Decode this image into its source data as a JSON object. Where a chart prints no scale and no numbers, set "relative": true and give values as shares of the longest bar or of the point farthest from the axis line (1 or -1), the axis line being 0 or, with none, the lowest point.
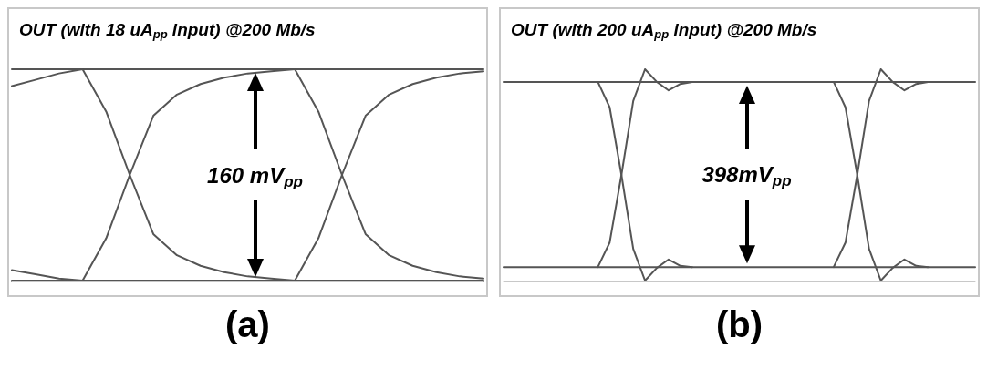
{
  "chart_data": [
    {
      "type": "line",
      "title": "OUT (with 18 uA$_{pp}$ input) @200 Mb/s",
      "relative": true,
      "categories": [
        null,
        null,
        null,
        null,
        null,
        null,
        null,
        null,
        null,
        null,
        null,
        null,
        null,
        null,
        null,
        null,
        null,
        null,
        null,
        null,
        null
      ],
      "annotations": [
        "160 mV$_{pp}$",
        "(a)"
      ],
      "marker": "none",
      "series": [
        {
          "color": "#555555",
          "values": [
            1,
            1,
            1,
            1,
            1,
            1,
            1,
            1,
            1,
            1,
            1,
            1,
            1,
            1,
            1,
            1,
            1,
            1,
            1,
            1,
            1
          ]
        },
        {
          "color": "#555555",
          "values": [
            0,
            0,
            0,
            0,
            0,
            0,
            0,
            0,
            0,
            0,
            0,
            0,
            0,
            0,
            0,
            0,
            0,
            0,
            0,
            0,
            0
          ]
        },
        {
          "color": "#555555",
          "values": [
            0.92,
            0.95,
            0.98,
            1,
            null,
            null,
            null,
            null,
            null,
            null,
            null,
            null,
            null,
            null,
            null,
            null,
            null,
            null,
            null,
            null,
            null
          ]
        },
        {
          "color": "#555555",
          "values": [
            0.05,
            0.03,
            0.01,
            0,
            null,
            null,
            null,
            null,
            null,
            null,
            null,
            null,
            null,
            null,
            null,
            null,
            null,
            null,
            null,
            null,
            null
          ]
        },
        {
          "color": "#555555",
          "values": [
            null,
            null,
            null,
            1,
            0.8,
            0.5,
            0.22,
            0.12,
            0.07,
            0.04,
            0.02,
            0.01,
            0,
            null,
            null,
            null,
            null,
            null,
            null,
            null,
            null
          ]
        },
        {
          "color": "#555555",
          "values": [
            null,
            null,
            null,
            0,
            0.2,
            0.5,
            0.78,
            0.88,
            0.93,
            0.96,
            0.98,
            0.99,
            1,
            null,
            null,
            null,
            null,
            null,
            null,
            null,
            null
          ]
        },
        {
          "color": "#555555",
          "values": [
            null,
            null,
            null,
            null,
            null,
            null,
            null,
            null,
            null,
            null,
            null,
            null,
            1,
            0.8,
            0.5,
            0.22,
            0.12,
            0.07,
            0.04,
            0.02,
            0.01
          ]
        },
        {
          "color": "#555555",
          "values": [
            null,
            null,
            null,
            null,
            null,
            null,
            null,
            null,
            null,
            null,
            null,
            null,
            0,
            0.2,
            0.5,
            0.78,
            0.88,
            0.93,
            0.96,
            0.98,
            0.99
          ]
        }
      ]
    },
    {
      "type": "line",
      "title": "OUT (with 200 uA$_{pp}$ input) @200 Mb/s",
      "relative": true,
      "categories": [
        null,
        null,
        null,
        null,
        null,
        null,
        null,
        null,
        null,
        null,
        null,
        null,
        null,
        null,
        null,
        null,
        null,
        null,
        null,
        null,
        null,
        null,
        null,
        null,
        null,
        null,
        null,
        null,
        null,
        null,
        null,
        null,
        null,
        null,
        null,
        null,
        null,
        null,
        null,
        null,
        null
      ],
      "annotations": [
        "398mV$_{pp}$",
        "(b)"
      ],
      "marker": "none",
      "series": [
        {
          "color": "#555555",
          "values": [
            0.94,
            0.94,
            0.94,
            0.94,
            0.94,
            0.94,
            0.94,
            0.94,
            0.94,
            0.94,
            0.94,
            0.94,
            0.94,
            0.94,
            0.94,
            0.94,
            0.94,
            0.94,
            0.94,
            0.94,
            0.94,
            0.94,
            0.94,
            0.94,
            0.94,
            0.94,
            0.94,
            0.94,
            0.94,
            0.94,
            0.94,
            0.94,
            0.94,
            0.94,
            0.94,
            0.94,
            0.94,
            0.94,
            0.94,
            0.94,
            0.94
          ]
        },
        {
          "color": "#555555",
          "values": [
            0.064,
            0.064,
            0.064,
            0.064,
            0.064,
            0.064,
            0.064,
            0.064,
            0.064,
            0.064,
            0.064,
            0.064,
            0.064,
            0.064,
            0.064,
            0.064,
            0.064,
            0.064,
            0.064,
            0.064,
            0.064,
            0.064,
            0.064,
            0.064,
            0.064,
            0.064,
            0.064,
            0.064,
            0.064,
            0.064,
            0.064,
            0.064,
            0.064,
            0.064,
            0.064,
            0.064,
            0.064,
            0.064,
            0.064,
            0.064,
            0.064
          ]
        },
        {
          "color": "#555555",
          "values": [
            null,
            null,
            null,
            null,
            null,
            null,
            null,
            null,
            0.94,
            0.82,
            0.5,
            0.15,
            0,
            0.06,
            0.1,
            0.07,
            0.064,
            null,
            null,
            null,
            null,
            null,
            null,
            null,
            null,
            null,
            null,
            null,
            null,
            null,
            null,
            null,
            null,
            null,
            null,
            null,
            null,
            null,
            null,
            null,
            null
          ]
        },
        {
          "color": "#555555",
          "values": [
            null,
            null,
            null,
            null,
            null,
            null,
            null,
            null,
            0.064,
            0.18,
            0.5,
            0.85,
            1,
            0.94,
            0.9,
            0.93,
            0.94,
            null,
            null,
            null,
            null,
            null,
            null,
            null,
            null,
            null,
            null,
            null,
            null,
            null,
            null,
            null,
            null,
            null,
            null,
            null,
            null,
            null,
            null,
            null,
            null
          ]
        },
        {
          "color": "#555555",
          "values": [
            null,
            null,
            null,
            null,
            null,
            null,
            null,
            null,
            null,
            null,
            null,
            null,
            null,
            null,
            null,
            null,
            null,
            null,
            null,
            null,
            null,
            null,
            null,
            null,
            null,
            null,
            null,
            null,
            0.94,
            0.82,
            0.5,
            0.15,
            0,
            0.06,
            0.1,
            0.07,
            0.064,
            null,
            null,
            null,
            null
          ]
        },
        {
          "color": "#555555",
          "values": [
            null,
            null,
            null,
            null,
            null,
            null,
            null,
            null,
            null,
            null,
            null,
            null,
            null,
            null,
            null,
            null,
            null,
            null,
            null,
            null,
            null,
            null,
            null,
            null,
            null,
            null,
            null,
            null,
            0.064,
            0.18,
            0.5,
            0.85,
            1,
            0.94,
            0.9,
            0.93,
            0.94,
            null,
            null,
            null,
            null
          ]
        }
      ]
    }
  ]
}
